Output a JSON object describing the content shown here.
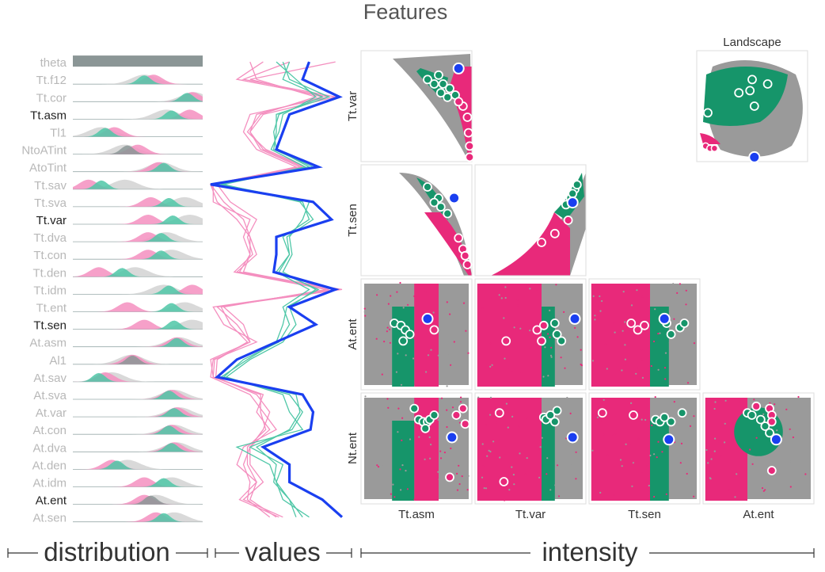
{
  "title": "Features",
  "colors": {
    "pink": "#e8297a",
    "pink_light": "#f48fbf",
    "green": "#16956a",
    "green_light": "#4fc7a7",
    "blue": "#1a3ff0",
    "gray": "#9a9a9a",
    "gray_dark": "#8b9696",
    "gray_light": "#d2d2d2"
  },
  "chart_data": [
    {
      "type": "density-rows",
      "title": "distribution",
      "features": [
        {
          "name": "theta",
          "highlight": false
        },
        {
          "name": "Tt.f12",
          "highlight": false
        },
        {
          "name": "Tt.cor",
          "highlight": false
        },
        {
          "name": "Tt.asm",
          "highlight": true
        },
        {
          "name": "Tl1",
          "highlight": false
        },
        {
          "name": "NtoATint",
          "highlight": false
        },
        {
          "name": "AtoTint",
          "highlight": false
        },
        {
          "name": "Tt.sav",
          "highlight": false
        },
        {
          "name": "Tt.sva",
          "highlight": false
        },
        {
          "name": "Tt.var",
          "highlight": true
        },
        {
          "name": "Tt.dva",
          "highlight": false
        },
        {
          "name": "Tt.con",
          "highlight": false
        },
        {
          "name": "Tt.den",
          "highlight": false
        },
        {
          "name": "Tt.idm",
          "highlight": false
        },
        {
          "name": "Tt.ent",
          "highlight": false
        },
        {
          "name": "Tt.sen",
          "highlight": true
        },
        {
          "name": "At.asm",
          "highlight": false
        },
        {
          "name": "Al1",
          "highlight": false
        },
        {
          "name": "At.sav",
          "highlight": false
        },
        {
          "name": "At.sva",
          "highlight": false
        },
        {
          "name": "At.var",
          "highlight": false
        },
        {
          "name": "At.con",
          "highlight": false
        },
        {
          "name": "At.dva",
          "highlight": false
        },
        {
          "name": "At.den",
          "highlight": false
        },
        {
          "name": "At.idm",
          "highlight": false
        },
        {
          "name": "At.ent",
          "highlight": true
        },
        {
          "name": "At.sen",
          "highlight": false
        }
      ],
      "peaks": [
        {
          "gray": 0.5,
          "pink": 0.5,
          "green": 0.5
        },
        {
          "gray": 0.55,
          "pink": 0.62,
          "green": 0.55
        },
        {
          "gray": 0.93,
          "pink": 0.92,
          "green": 0.88
        },
        {
          "gray": 0.72,
          "pink": 0.9,
          "green": 0.76
        },
        {
          "gray": 0.22,
          "pink": 0.32,
          "green": 0.25
        },
        {
          "gray": 0.4,
          "pink": 0.5,
          "green": 0.42
        },
        {
          "gray": 0.68,
          "pink": 0.66,
          "green": 0.7
        },
        {
          "gray": 0.4,
          "pink": 0.12,
          "green": 0.22
        },
        {
          "gray": 0.86,
          "pink": 0.6,
          "green": 0.74
        },
        {
          "gray": 0.9,
          "pink": 0.58,
          "green": 0.77
        },
        {
          "gray": 0.72,
          "pink": 0.58,
          "green": 0.68
        },
        {
          "gray": 0.76,
          "pink": 0.58,
          "green": 0.68
        },
        {
          "gray": 0.48,
          "pink": 0.2,
          "green": 0.38
        },
        {
          "gray": 0.7,
          "pink": 0.92,
          "green": 0.74
        },
        {
          "gray": 0.86,
          "pink": 0.42,
          "green": 0.76
        },
        {
          "gray": 0.92,
          "pink": 0.55,
          "green": 0.78
        },
        {
          "gray": 0.82,
          "pink": 0.8,
          "green": 0.8
        },
        {
          "gray": 0.45,
          "pink": 0.46,
          "green": 0.46
        },
        {
          "gray": 0.3,
          "pink": 0.25,
          "green": 0.2
        },
        {
          "gray": 0.78,
          "pink": 0.76,
          "green": 0.74
        },
        {
          "gray": 0.82,
          "pink": 0.8,
          "green": 0.78
        },
        {
          "gray": 0.78,
          "pink": 0.76,
          "green": 0.74
        },
        {
          "gray": 0.8,
          "pink": 0.78,
          "green": 0.76
        },
        {
          "gray": 0.42,
          "pink": 0.3,
          "green": 0.34
        },
        {
          "gray": 0.76,
          "pink": 0.55,
          "green": 0.7
        },
        {
          "gray": 0.64,
          "pink": 0.55,
          "green": 0.6
        },
        {
          "gray": 0.78,
          "pink": 0.64,
          "green": 0.7
        }
      ]
    },
    {
      "type": "line",
      "title": "values",
      "blue": [
        0.75,
        0.7,
        0.98,
        0.6,
        0.55,
        0.5,
        0.82,
        0.0,
        0.78,
        0.92,
        0.5,
        0.5,
        0.48,
        0.95,
        0.6,
        0.8,
        0.5,
        0.2,
        0.05,
        0.7,
        0.78,
        0.76,
        0.4,
        0.6,
        0.6,
        0.85,
        1.0
      ],
      "green_series": [
        [
          0.55,
          0.6,
          0.9,
          0.5,
          0.5,
          0.48,
          0.78,
          0.05,
          0.7,
          0.75,
          0.55,
          0.6,
          0.5,
          0.75,
          0.55,
          0.6,
          0.52,
          0.25,
          0.1,
          0.6,
          0.7,
          0.62,
          0.3,
          0.55,
          0.5,
          0.6,
          0.7
        ],
        [
          0.6,
          0.55,
          0.85,
          0.52,
          0.48,
          0.5,
          0.75,
          0.08,
          0.75,
          0.7,
          0.6,
          0.62,
          0.55,
          0.8,
          0.6,
          0.65,
          0.55,
          0.3,
          0.12,
          0.55,
          0.6,
          0.7,
          0.2,
          0.45,
          0.5,
          0.55,
          0.75
        ],
        [
          0.5,
          0.65,
          0.8,
          0.55,
          0.52,
          0.46,
          0.72,
          0.1,
          0.68,
          0.78,
          0.58,
          0.6,
          0.52,
          0.82,
          0.58,
          0.55,
          0.5,
          0.28,
          0.08,
          0.65,
          0.68,
          0.6,
          0.35,
          0.5,
          0.48,
          0.6,
          0.65
        ]
      ],
      "pink_series": [
        [
          0.95,
          0.3,
          0.85,
          0.35,
          0.3,
          0.4,
          0.7,
          0.0,
          0.05,
          0.2,
          0.3,
          0.35,
          0.2,
          1.0,
          0.05,
          0.2,
          0.3,
          0.0,
          0.02,
          0.4,
          0.35,
          0.45,
          0.3,
          0.3,
          0.4,
          0.25,
          0.55
        ],
        [
          0.4,
          0.2,
          0.9,
          0.3,
          0.25,
          0.35,
          0.65,
          0.02,
          0.02,
          0.3,
          0.25,
          0.3,
          0.25,
          0.95,
          0.02,
          0.1,
          0.35,
          0.02,
          0.0,
          0.3,
          0.4,
          0.5,
          0.25,
          0.2,
          0.35,
          0.3,
          0.5
        ],
        [
          0.6,
          0.25,
          0.95,
          0.4,
          0.3,
          0.38,
          0.68,
          0.0,
          0.1,
          0.25,
          0.3,
          0.3,
          0.22,
          0.9,
          0.08,
          0.15,
          0.28,
          0.05,
          0.04,
          0.35,
          0.45,
          0.4,
          0.3,
          0.25,
          0.3,
          0.28,
          0.45
        ],
        [
          0.3,
          0.35,
          0.8,
          0.38,
          0.28,
          0.42,
          0.72,
          0.05,
          0.15,
          0.35,
          0.28,
          0.32,
          0.18,
          0.88,
          0.1,
          0.25,
          0.3,
          0.03,
          0.02,
          0.38,
          0.38,
          0.42,
          0.28,
          0.28,
          0.35,
          0.22,
          0.52
        ]
      ]
    },
    {
      "type": "scatter",
      "title": "Features",
      "row_labels": [
        "Tt.var",
        "Tt.sen",
        "At.ent",
        "Nt.ent"
      ],
      "col_labels": [
        "Tt.asm",
        "Tt.var",
        "Tt.sen",
        "At.ent"
      ],
      "cells": [
        {
          "row": 0,
          "col": 0,
          "green": [
            [
              0.7,
              0.22
            ],
            [
              0.74,
              0.3
            ],
            [
              0.8,
              0.34
            ],
            [
              0.85,
              0.4
            ],
            [
              0.78,
              0.42
            ],
            [
              0.72,
              0.38
            ],
            [
              0.66,
              0.3
            ],
            [
              0.6,
              0.26
            ]
          ],
          "pink": [
            [
              0.96,
              0.6
            ],
            [
              0.97,
              0.74
            ],
            [
              0.98,
              0.86
            ],
            [
              0.98,
              0.96
            ],
            [
              0.92,
              0.5
            ],
            [
              0.88,
              0.46
            ]
          ],
          "blue": [
            0.88,
            0.16
          ]
        },
        {
          "row": 1,
          "col": 0,
          "green": [
            [
              0.6,
              0.2
            ],
            [
              0.7,
              0.3
            ],
            [
              0.72,
              0.38
            ],
            [
              0.66,
              0.34
            ],
            [
              0.78,
              0.44
            ]
          ],
          "pink": [
            [
              0.88,
              0.66
            ],
            [
              0.92,
              0.76
            ],
            [
              0.94,
              0.82
            ],
            [
              0.96,
              0.9
            ]
          ],
          "blue": [
            0.84,
            0.3
          ]
        },
        {
          "row": 1,
          "col": 1,
          "green": [
            [
              0.82,
              0.36
            ],
            [
              0.86,
              0.3
            ],
            [
              0.9,
              0.22
            ],
            [
              0.92,
              0.18
            ],
            [
              0.88,
              0.26
            ]
          ],
          "pink": [
            [
              0.6,
              0.7
            ],
            [
              0.72,
              0.62
            ],
            [
              0.84,
              0.5
            ]
          ],
          "blue": [
            0.88,
            0.34
          ]
        },
        {
          "row": 2,
          "col": 0,
          "green": [
            [
              0.3,
              0.4
            ],
            [
              0.36,
              0.42
            ],
            [
              0.4,
              0.46
            ],
            [
              0.44,
              0.5
            ],
            [
              0.38,
              0.56
            ]
          ],
          "pink": [
            [
              0.66,
              0.46
            ]
          ],
          "blue": [
            0.6,
            0.36
          ]
        },
        {
          "row": 2,
          "col": 1,
          "green": [
            [
              0.72,
              0.4
            ],
            [
              0.74,
              0.5
            ],
            [
              0.78,
              0.56
            ]
          ],
          "pink": [
            [
              0.28,
              0.56
            ],
            [
              0.56,
              0.46
            ],
            [
              0.62,
              0.42
            ],
            [
              0.6,
              0.56
            ]
          ],
          "blue": [
            0.9,
            0.36
          ]
        },
        {
          "row": 2,
          "col": 2,
          "green": [
            [
              0.7,
              0.4
            ],
            [
              0.74,
              0.5
            ],
            [
              0.82,
              0.44
            ],
            [
              0.86,
              0.4
            ]
          ],
          "pink": [
            [
              0.38,
              0.4
            ],
            [
              0.44,
              0.46
            ],
            [
              0.5,
              0.42
            ]
          ],
          "blue": [
            0.68,
            0.36
          ]
        },
        {
          "row": 3,
          "col": 0,
          "green": [
            [
              0.48,
              0.14
            ],
            [
              0.52,
              0.24
            ],
            [
              0.56,
              0.26
            ],
            [
              0.6,
              0.26
            ],
            [
              0.62,
              0.24
            ],
            [
              0.66,
              0.2
            ],
            [
              0.58,
              0.32
            ]
          ],
          "pink": [
            [
              0.92,
              0.14
            ],
            [
              0.94,
              0.28
            ],
            [
              0.86,
              0.2
            ],
            [
              0.8,
              0.76
            ]
          ],
          "blue": [
            0.82,
            0.4
          ]
        },
        {
          "row": 3,
          "col": 1,
          "green": [
            [
              0.62,
              0.22
            ],
            [
              0.64,
              0.24
            ],
            [
              0.68,
              0.2
            ],
            [
              0.72,
              0.26
            ],
            [
              0.74,
              0.16
            ]
          ],
          "pink": [
            [
              0.22,
              0.18
            ],
            [
              0.26,
              0.8
            ]
          ],
          "blue": [
            0.88,
            0.4
          ]
        },
        {
          "row": 3,
          "col": 2,
          "green": [
            [
              0.6,
              0.24
            ],
            [
              0.64,
              0.26
            ],
            [
              0.68,
              0.22
            ],
            [
              0.74,
              0.26
            ],
            [
              0.84,
              0.18
            ]
          ],
          "pink": [
            [
              0.12,
              0.18
            ],
            [
              0.4,
              0.2
            ]
          ],
          "blue": [
            0.72,
            0.42
          ]
        },
        {
          "row": 3,
          "col": 3,
          "green": [
            [
              0.4,
              0.18
            ],
            [
              0.44,
              0.2
            ],
            [
              0.52,
              0.24
            ],
            [
              0.56,
              0.3
            ],
            [
              0.6,
              0.36
            ]
          ],
          "pink": [
            [
              0.48,
              0.12
            ],
            [
              0.6,
              0.14
            ],
            [
              0.62,
              0.2
            ],
            [
              0.62,
              0.26
            ],
            [
              0.62,
              0.7
            ]
          ],
          "blue": [
            0.66,
            0.42
          ]
        }
      ]
    },
    {
      "type": "scatter",
      "title": "Landscape",
      "green": [
        [
          0.5,
          0.26
        ],
        [
          0.64,
          0.3
        ],
        [
          0.38,
          0.38
        ],
        [
          0.52,
          0.5
        ],
        [
          0.48,
          0.36
        ],
        [
          0.1,
          0.56
        ]
      ],
      "pink": [
        [
          0.08,
          0.86
        ],
        [
          0.12,
          0.88
        ],
        [
          0.16,
          0.88
        ]
      ],
      "blue": [
        0.52,
        0.96
      ]
    }
  ],
  "labels": {
    "distribution": "distribution",
    "values": "values",
    "intensity": "intensity"
  }
}
